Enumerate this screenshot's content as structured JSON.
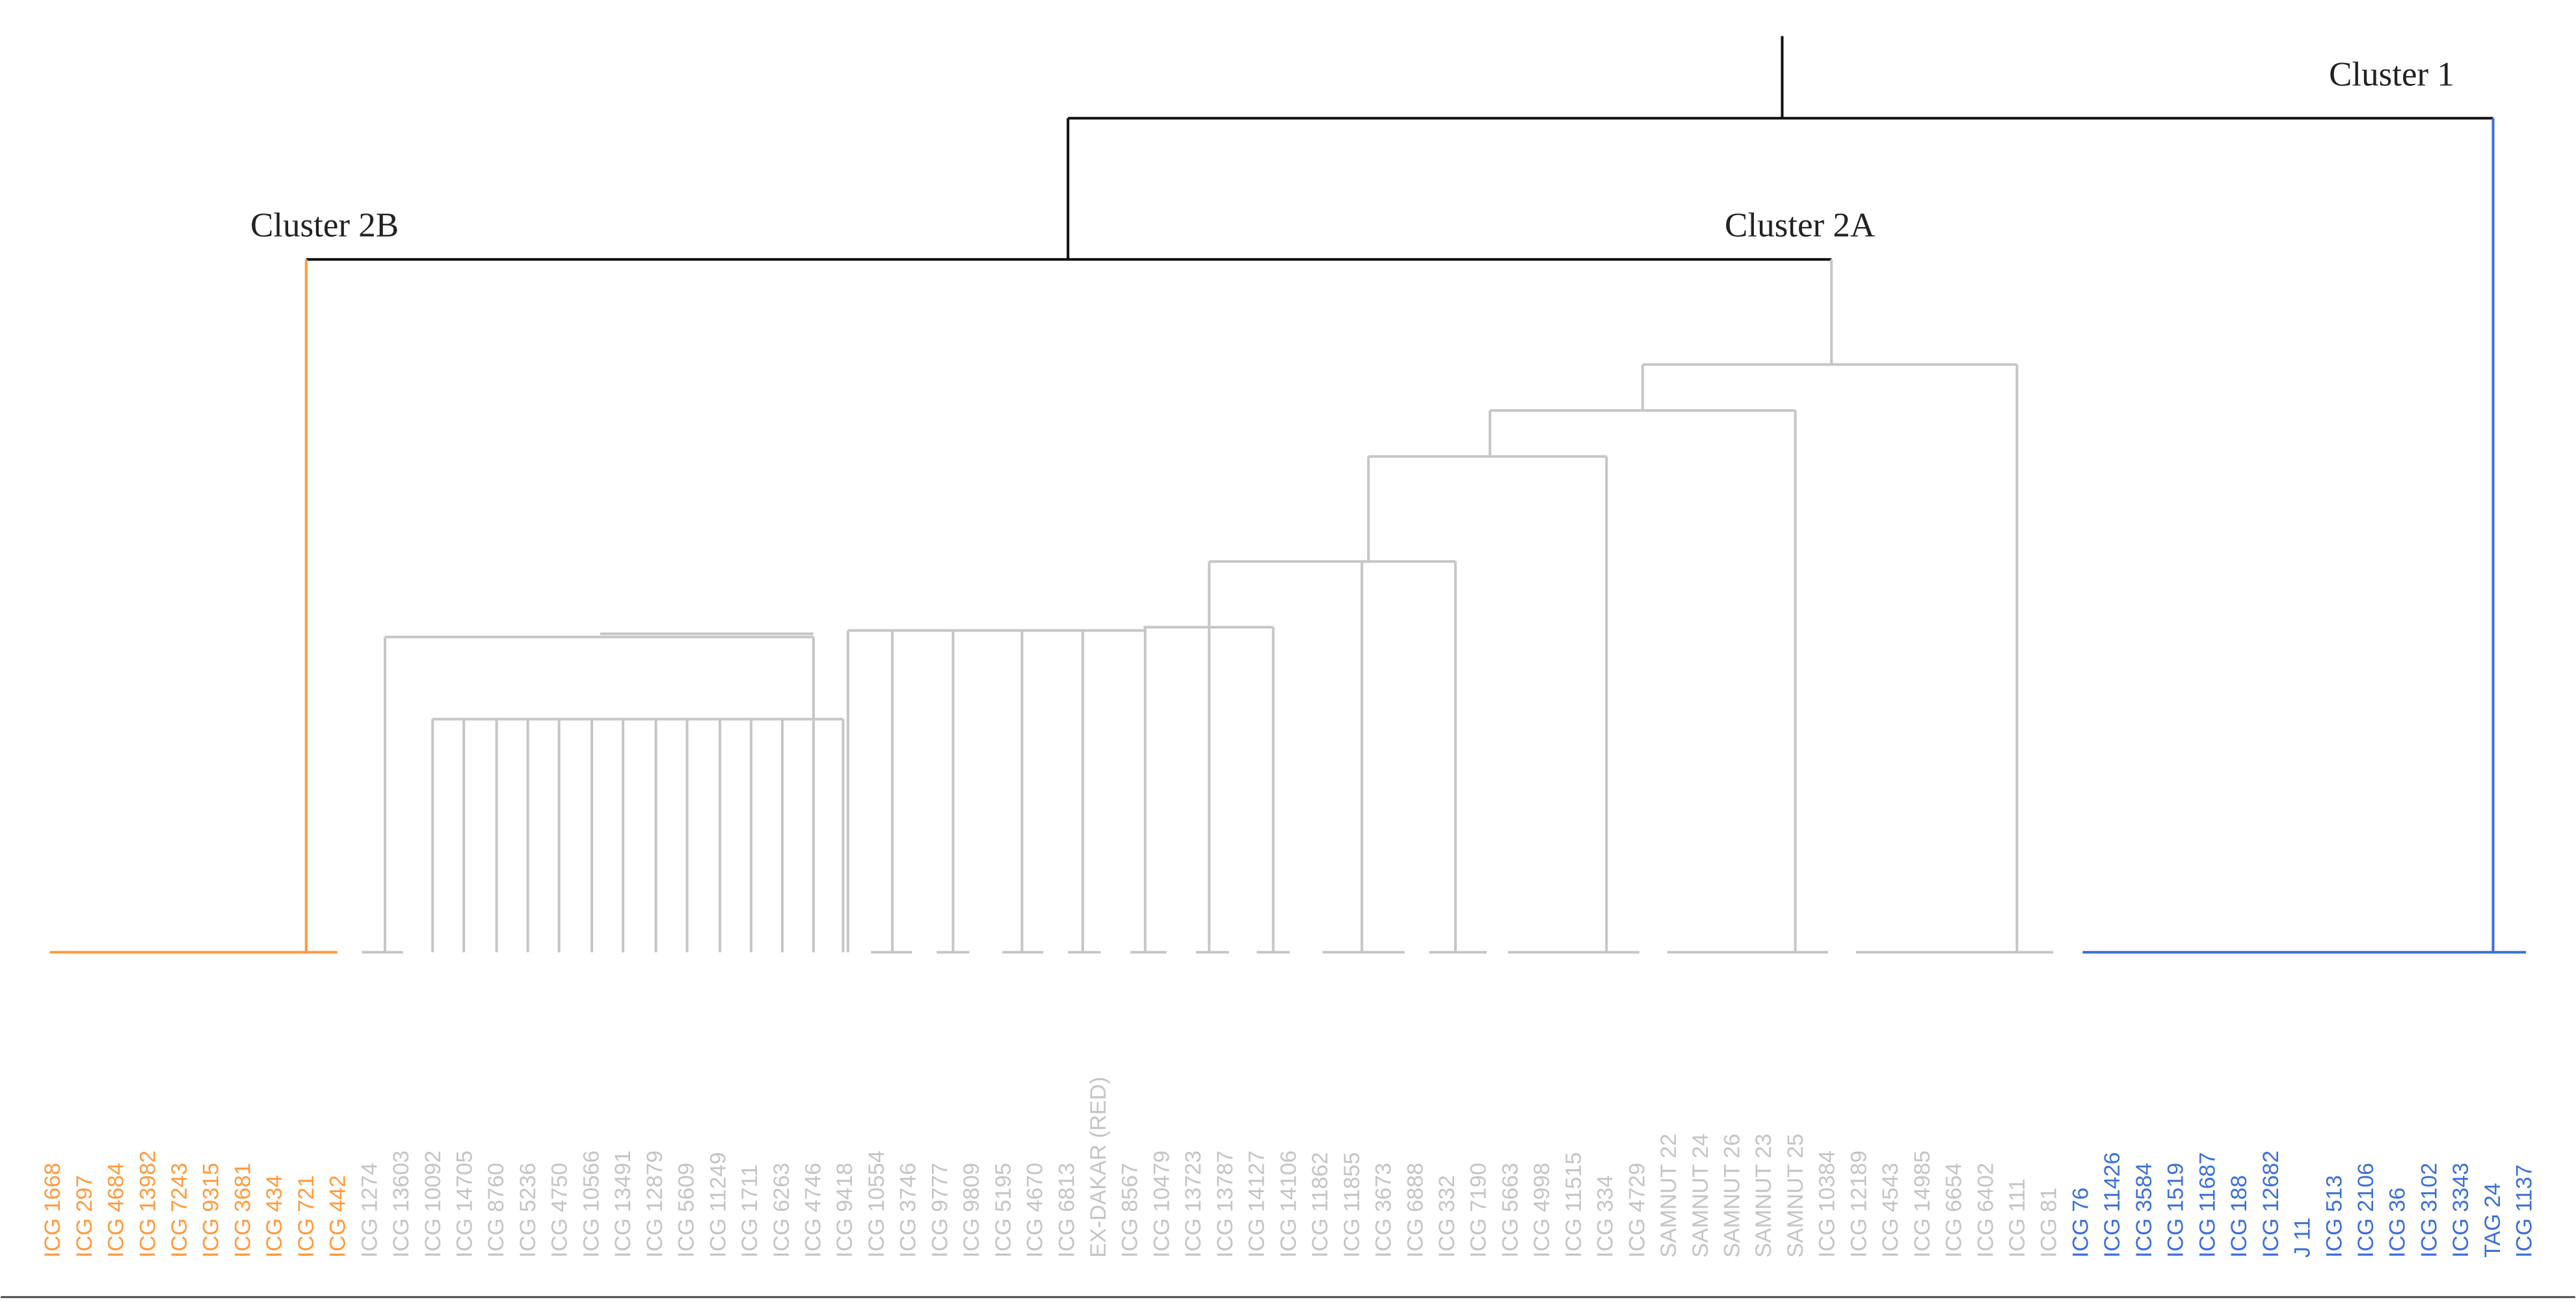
{
  "clusters": {
    "cluster_1": "Cluster 1",
    "cluster_2a": "Cluster 2A",
    "cluster_2b": "Cluster 2B"
  },
  "leaves": {
    "cluster_2b": [
      "ICG 1668",
      "ICG 297",
      "ICG 4684",
      "ICG 13982",
      "ICG 7243",
      "ICG 9315",
      "ICG 3681",
      "ICG 434",
      "ICG 721",
      "ICG 442"
    ],
    "cluster_2a": [
      "ICG 1274",
      "ICG 13603",
      "ICG 10092",
      "ICG 14705",
      "ICG 8760",
      "ICG 5236",
      "ICG 4750",
      "ICG 10566",
      "ICG 13491",
      "ICG 12879",
      "ICG 5609",
      "ICG 11249",
      "ICG 1711",
      "ICG 6263",
      "ICG 4746",
      "ICG 9418",
      "ICG 10554",
      "ICG 3746",
      "ICG 9777",
      "ICG 9809",
      "ICG 5195",
      "ICG 4670",
      "ICG 6813",
      "EX-DAKAR (RED)",
      "ICG 8567",
      "ICG 10479",
      "ICG 13723",
      "ICG 13787",
      "ICG 14127",
      "ICG 14106",
      "ICG 11862",
      "ICG 11855",
      "ICG 3673",
      "ICG 6888",
      "ICG 332",
      "ICG 7190",
      "ICG 5663",
      "ICG 4998",
      "ICG 11515",
      "ICG 334",
      "ICG 4729",
      "SAMNUT 22",
      "SAMNUT 24",
      "SAMNUT 26",
      "SAMNUT 23",
      "SAMNUT 25",
      "ICG 10384",
      "ICG 12189",
      "ICG 4543",
      "ICG 14985",
      "ICG 6654",
      "ICG 6402",
      "ICG 111",
      "ICG 81"
    ],
    "cluster_1": [
      "ICG 76",
      "ICG 11426",
      "ICG 3584",
      "ICG 1519",
      "ICG 11687",
      "ICG 188",
      "ICG 12682",
      "J 11",
      "ICG 513",
      "ICG 2106",
      "ICG 36",
      "ICG 3102",
      "ICG 3343",
      "TAG 24",
      "ICG 1137"
    ]
  }
}
